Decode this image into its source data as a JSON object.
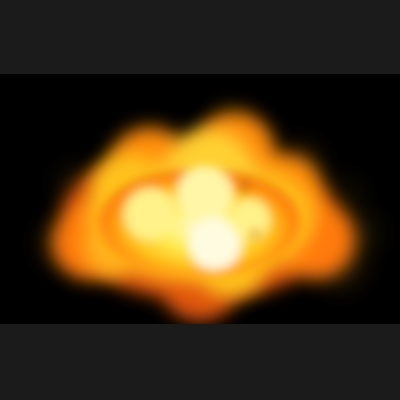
{
  "scene": {
    "subject": "explosion-fireball",
    "colors": {
      "letterbox": "#1b1b1b",
      "background": "#000000",
      "core": "#fffbe0",
      "inner": "#ffee55",
      "mid": "#ffc21a",
      "outer": "#ff7a0a",
      "edge": "#b83a06",
      "smoke": "#4a3a10"
    }
  }
}
